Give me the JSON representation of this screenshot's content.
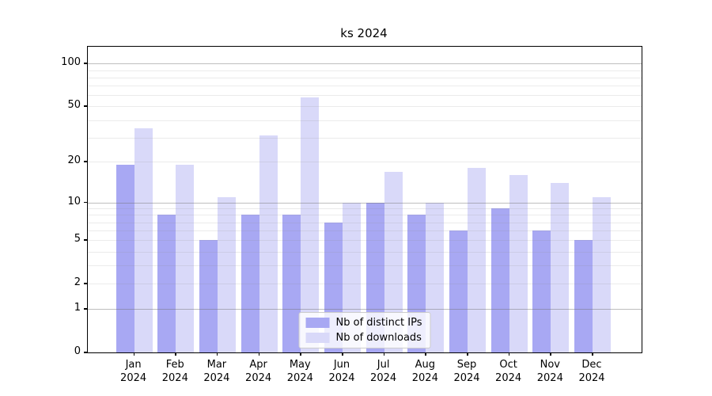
{
  "title": "ks 2024",
  "chart_data": {
    "type": "bar",
    "title": "ks 2024",
    "categories": [
      "Jan",
      "Feb",
      "Mar",
      "Apr",
      "May",
      "Jun",
      "Jul",
      "Aug",
      "Sep",
      "Oct",
      "Nov",
      "Dec"
    ],
    "x_sublabel": "2024",
    "series": [
      {
        "name": "Nb of distinct IPs",
        "color": "#a8a8f3",
        "values": [
          19,
          8,
          5,
          8,
          8,
          7,
          10,
          8,
          6,
          9,
          6,
          5
        ]
      },
      {
        "name": "Nb of downloads",
        "color": "#d9d9f9",
        "values": [
          35,
          19,
          11,
          31,
          58,
          10,
          17,
          10,
          18,
          16,
          14,
          11
        ]
      }
    ],
    "xlabel": "",
    "ylabel": "",
    "yscale": "log10(value+1)",
    "ylim": [
      0,
      120
    ],
    "yticks": [
      100,
      50,
      20,
      10,
      5,
      2,
      1,
      0
    ],
    "minor_gridlines": [
      2,
      3,
      4,
      5,
      6,
      7,
      8,
      9,
      20,
      30,
      40,
      50,
      60,
      70,
      80,
      90
    ],
    "major_gridlines": [
      1,
      10,
      100
    ],
    "grid": true,
    "legend_position": "lower center",
    "legend_entries": [
      "Nb of distinct IPs",
      "Nb of downloads"
    ]
  }
}
